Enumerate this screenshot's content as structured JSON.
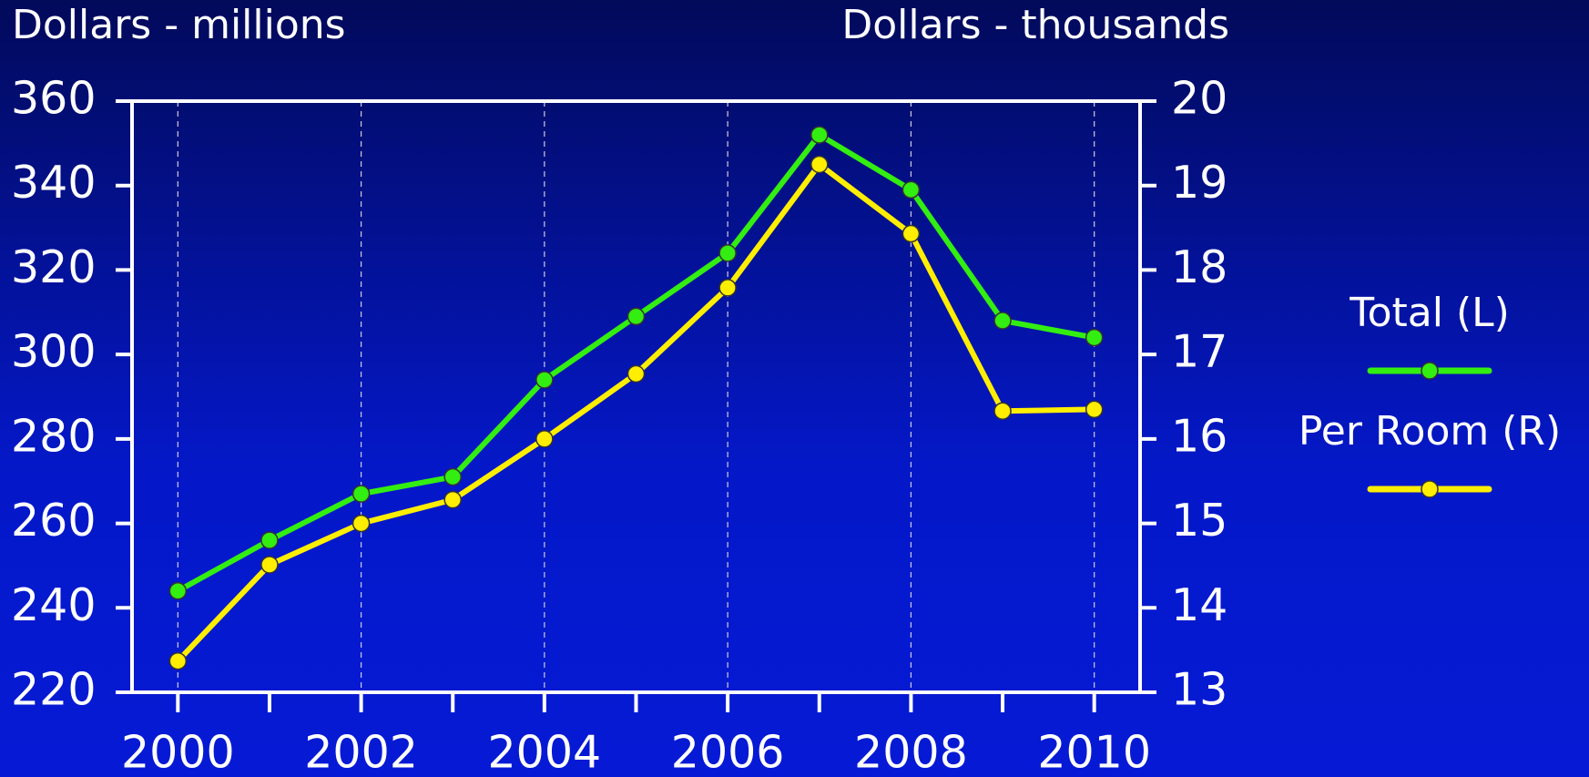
{
  "chart_data": {
    "type": "line",
    "y_label": "Dollars - millions",
    "y2_label": "Dollars - thousands",
    "x": [
      2000,
      2001,
      2002,
      2003,
      2004,
      2005,
      2006,
      2007,
      2008,
      2009,
      2010
    ],
    "series": [
      {
        "name": "Total (L)",
        "color": "#33ee11",
        "axis": "y",
        "values": [
          244,
          256,
          267,
          271,
          294,
          309,
          324,
          352,
          339,
          308,
          304
        ]
      },
      {
        "name": "Per Room (R)",
        "color": "#ffee00",
        "axis": "y2",
        "values": [
          13.37,
          14.51,
          15.0,
          15.28,
          16.0,
          16.77,
          17.79,
          19.25,
          18.43,
          16.33,
          16.35
        ]
      }
    ],
    "xlim": [
      1999.5,
      2010.5
    ],
    "xticks": [
      2000,
      2002,
      2004,
      2006,
      2008,
      2010
    ],
    "xminorticks": [
      2001,
      2003,
      2005,
      2007,
      2009
    ],
    "ylim": [
      220,
      360
    ],
    "yticks": [
      220,
      240,
      260,
      280,
      300,
      320,
      340,
      360
    ],
    "y2lim": [
      13,
      20
    ],
    "y2ticks": [
      13,
      14,
      15,
      16,
      17,
      18,
      19,
      20
    ],
    "grid": true,
    "legend": "right"
  }
}
